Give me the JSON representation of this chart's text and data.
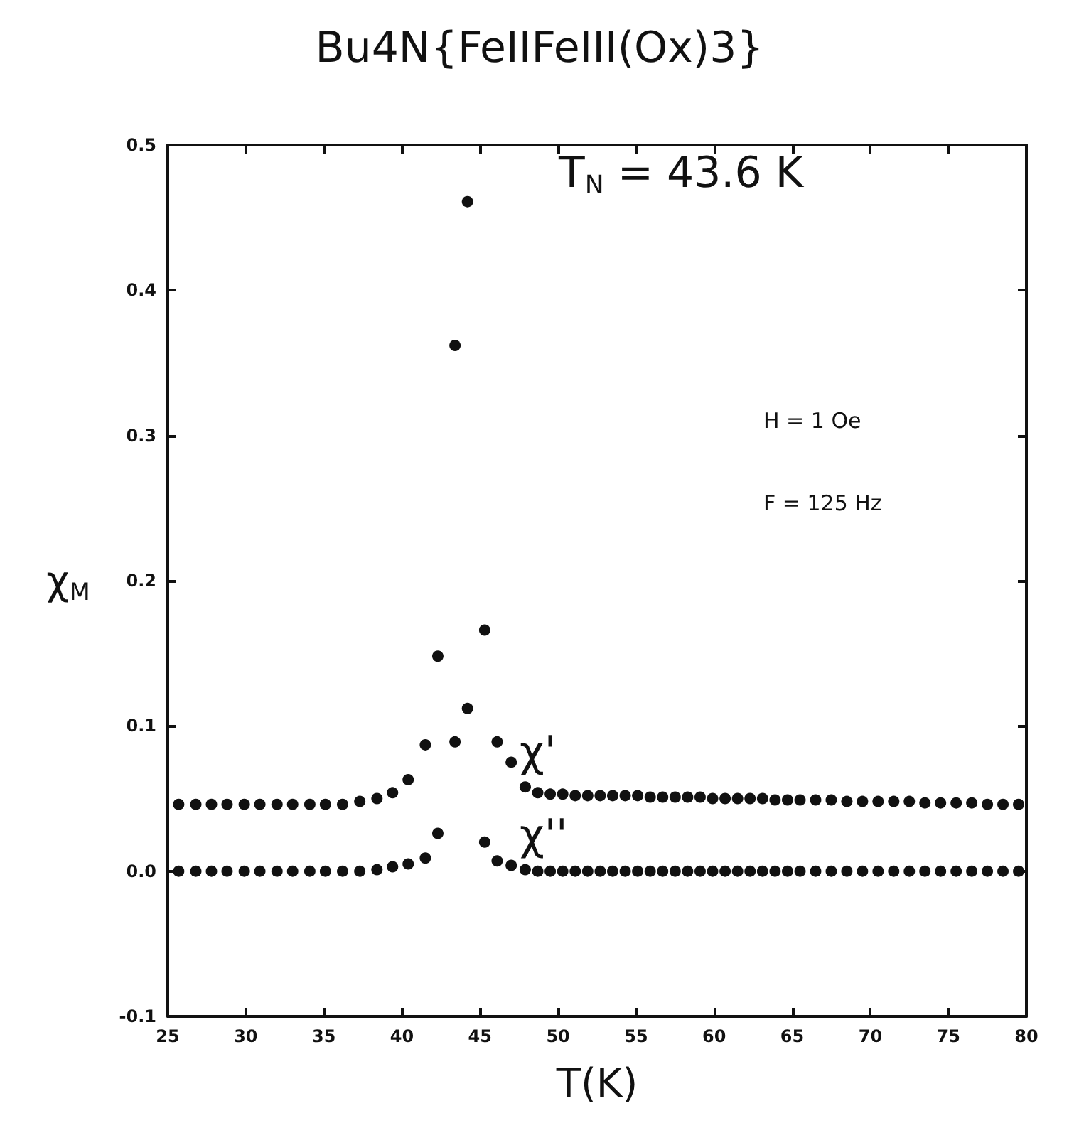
{
  "chart_data": {
    "type": "scatter",
    "title": "Bu4N{FeIIFeIII(Ox)3}",
    "xlabel": "T(K)",
    "ylabel": "χ$_{M}$",
    "annotations": [
      "T$_{N}$ = 43.6 K",
      "H = 1 Oe",
      "F = 125 Hz"
    ],
    "x": [
      25.7,
      26.8,
      27.8,
      28.8,
      29.9,
      30.9,
      32.0,
      33.0,
      34.1,
      35.1,
      36.2,
      37.3,
      38.4,
      39.4,
      40.4,
      41.5,
      42.3,
      43.4,
      44.2,
      45.3,
      46.1,
      47.0,
      47.9,
      48.7,
      49.5,
      50.3,
      51.1,
      51.9,
      52.7,
      53.5,
      54.3,
      55.1,
      55.9,
      56.7,
      57.5,
      58.3,
      59.1,
      59.9,
      60.7,
      61.5,
      62.3,
      63.1,
      63.9,
      64.7,
      65.5,
      66.5,
      67.5,
      68.5,
      69.5,
      70.5,
      71.5,
      72.5,
      73.5,
      74.5,
      75.5,
      76.5,
      77.5,
      78.5,
      79.5
    ],
    "series": [
      {
        "name": "χ'",
        "color": "#111111",
        "values": [
          0.046,
          0.046,
          0.046,
          0.046,
          0.046,
          0.046,
          0.046,
          0.046,
          0.046,
          0.046,
          0.046,
          0.048,
          0.05,
          0.054,
          0.063,
          0.087,
          0.148,
          0.362,
          0.461,
          0.166,
          0.089,
          0.075,
          0.058,
          0.054,
          0.053,
          0.053,
          0.052,
          0.052,
          0.052,
          0.052,
          0.052,
          0.052,
          0.051,
          0.051,
          0.051,
          0.051,
          0.051,
          0.05,
          0.05,
          0.05,
          0.05,
          0.05,
          0.049,
          0.049,
          0.049,
          0.049,
          0.049,
          0.048,
          0.048,
          0.048,
          0.048,
          0.048,
          0.047,
          0.047,
          0.047,
          0.047,
          0.046,
          0.046,
          0.046
        ]
      },
      {
        "name": "χ''",
        "color": "#111111",
        "values": [
          0.0,
          0.0,
          0.0,
          0.0,
          0.0,
          0.0,
          0.0,
          0.0,
          0.0,
          0.0,
          0.0,
          0.0,
          0.001,
          0.003,
          0.005,
          0.009,
          0.026,
          0.089,
          0.112,
          0.02,
          0.007,
          0.004,
          0.001,
          0.0,
          0.0,
          0.0,
          0.0,
          0.0,
          0.0,
          0.0,
          0.0,
          0.0,
          0.0,
          0.0,
          0.0,
          0.0,
          0.0,
          0.0,
          0.0,
          0.0,
          0.0,
          0.0,
          0.0,
          0.0,
          0.0,
          0.0,
          0.0,
          0.0,
          0.0,
          0.0,
          0.0,
          0.0,
          0.0,
          0.0,
          0.0,
          0.0,
          0.0,
          0.0,
          0.0
        ]
      }
    ],
    "xlim": [
      25,
      80
    ],
    "xticks": [
      25,
      30,
      35,
      40,
      45,
      50,
      55,
      60,
      65,
      70,
      75,
      80
    ],
    "ylim": [
      -0.1,
      0.5
    ],
    "yticks": [
      {
        "value": -0.1,
        "label": "-0.1"
      },
      {
        "value": 0,
        "label": "0.0"
      },
      {
        "value": 0.1,
        "label": "0.1"
      },
      {
        "value": 0.2,
        "label": "0.2"
      },
      {
        "value": 0.3,
        "label": "0.3"
      },
      {
        "value": 0.4,
        "label": "0.4"
      },
      {
        "value": 0.5,
        "label": "0.5"
      }
    ],
    "grid": false,
    "legend": false,
    "marker": "circle"
  }
}
